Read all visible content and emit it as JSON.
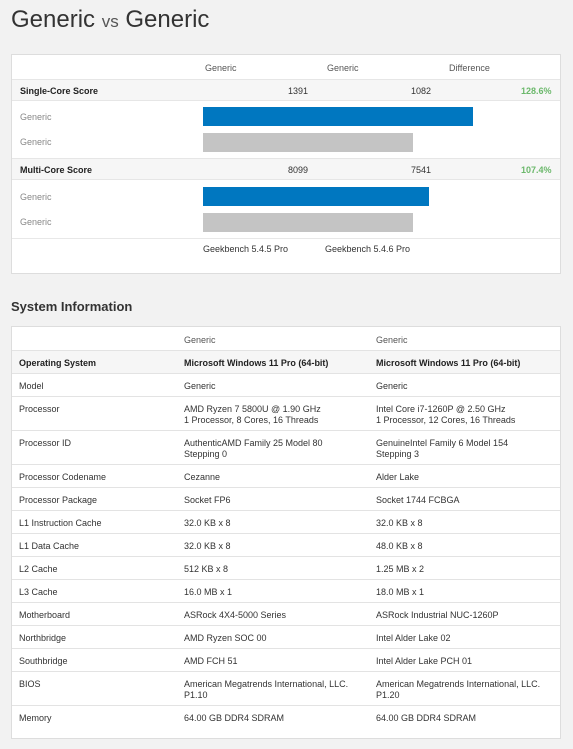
{
  "title": {
    "left": "Generic",
    "vs": "vs",
    "right": "Generic"
  },
  "benchmark": {
    "headers": {
      "col1": "Generic",
      "col2": "Generic",
      "diff": "Difference"
    },
    "single": {
      "label": "Single-Core Score",
      "val1": "1391",
      "val2": "1082",
      "diff": "128.6%",
      "bar1_label": "Generic",
      "bar2_label": "Generic",
      "bar1_fraction": 1.0,
      "bar2_fraction": 0.778
    },
    "multi": {
      "label": "Multi-Core Score",
      "val1": "8099",
      "val2": "7541",
      "diff": "107.4%",
      "bar1_label": "Generic",
      "bar2_label": "Generic",
      "bar1_fraction": 1.0,
      "bar2_fraction": 0.931
    },
    "versions": {
      "v1": "Geekbench 5.4.5 Pro",
      "v2": "Geekbench 5.4.6 Pro"
    },
    "colors": {
      "primary": "#0077c0",
      "secondary": "#c4c4c4",
      "diff": "#6bb86b"
    }
  },
  "system": {
    "title": "System Information",
    "headers": {
      "col1": "Generic",
      "col2": "Generic"
    },
    "rows": [
      {
        "label": "Operating System",
        "a": "Microsoft Windows 11 Pro (64-bit)",
        "b": "Microsoft Windows 11 Pro (64-bit)"
      },
      {
        "label": "Model",
        "a": "Generic",
        "b": "Generic"
      },
      {
        "label": "Processor",
        "a": "AMD Ryzen 7 5800U @ 1.90 GHz",
        "a2": "1 Processor, 8 Cores, 16 Threads",
        "b": "Intel Core i7-1260P @ 2.50 GHz",
        "b2": "1 Processor, 12 Cores, 16 Threads"
      },
      {
        "label": "Processor ID",
        "a": "AuthenticAMD Family 25 Model 80",
        "a2": "Stepping 0",
        "b": "GenuineIntel Family 6 Model 154",
        "b2": "Stepping 3"
      },
      {
        "label": "Processor Codename",
        "a": "Cezanne",
        "b": "Alder Lake"
      },
      {
        "label": "Processor Package",
        "a": "Socket FP6",
        "b": "Socket 1744 FCBGA"
      },
      {
        "label": "L1 Instruction Cache",
        "a": "32.0 KB x 8",
        "b": "32.0 KB x 8"
      },
      {
        "label": "L1 Data Cache",
        "a": "32.0 KB x 8",
        "b": "48.0 KB x 8"
      },
      {
        "label": "L2 Cache",
        "a": "512 KB x 8",
        "b": "1.25 MB x 2"
      },
      {
        "label": "L3 Cache",
        "a": "16.0 MB x 1",
        "b": "18.0 MB x 1"
      },
      {
        "label": "Motherboard",
        "a": "ASRock 4X4-5000 Series",
        "b": "ASRock Industrial NUC-1260P"
      },
      {
        "label": "Northbridge",
        "a": "AMD Ryzen SOC 00",
        "b": "Intel Alder Lake 02"
      },
      {
        "label": "Southbridge",
        "a": "AMD FCH 51",
        "b": "Intel Alder Lake PCH 01"
      },
      {
        "label": "BIOS",
        "a": "American Megatrends International, LLC.",
        "a2": "P1.10",
        "b": "American Megatrends International, LLC.",
        "b2": "P1.20"
      },
      {
        "label": "Memory",
        "a": "64.00 GB DDR4 SDRAM",
        "b": "64.00 GB DDR4 SDRAM"
      }
    ]
  }
}
